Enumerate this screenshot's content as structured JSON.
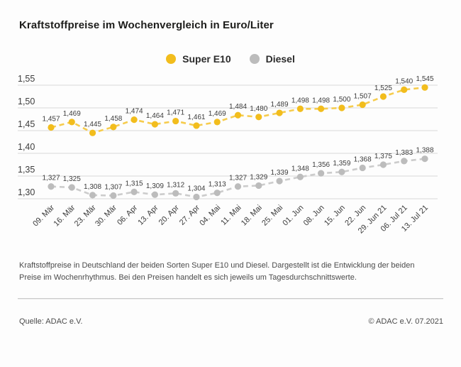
{
  "title": "Kraftstoffpreise im Wochenvergleich in Euro/Liter",
  "legend": {
    "items": [
      {
        "label": "Super E10",
        "color": "#f2bd1d"
      },
      {
        "label": "Diesel",
        "color": "#bcbcbc"
      }
    ]
  },
  "description": "Kraftstoffpreise in Deutschland der beiden Sorten Super E10 und Diesel. Dargestellt ist die Entwicklung der beiden Preise im Wochenrhythmus. Bei den Preisen handelt es sich jeweils um Tagesdurchschnittswerte.",
  "source": "Quelle: ADAC e.V.",
  "copyright": "© ADAC e.V. 07.2021",
  "colors": {
    "grid": "#d9d9d9",
    "axis_text": "#3c3c3c",
    "value_label_text": "#3c3c3c"
  },
  "chart_data": {
    "type": "line",
    "title": "Kraftstoffpreise im Wochenvergleich in Euro/Liter",
    "xlabel": "",
    "ylabel": "Euro/Liter",
    "ylim": [
      1.3,
      1.55
    ],
    "y_ticks": [
      1.55,
      1.5,
      1.45,
      1.4,
      1.35,
      1.3
    ],
    "grid": true,
    "legend_position": "top",
    "decimal_separator": ",",
    "value_labels": true,
    "categories": [
      "09. Mär",
      "16. Mär",
      "23. Mär",
      "30. Mär",
      "06. Apr",
      "13. Apr",
      "20. Apr",
      "27. Apr",
      "04. Mai",
      "11. Mai",
      "18. Mai",
      "25. Mai",
      "01. Jun",
      "08. Jun",
      "15. Jun",
      "22. Jun",
      "29. Jun 21",
      "06. Jul 21",
      "13. Jul 21"
    ],
    "series": [
      {
        "name": "Super E10",
        "marker_color": "#f2bd1d",
        "line_color": "#f6cc4d",
        "values": [
          1.457,
          1.469,
          1.445,
          1.458,
          1.474,
          1.464,
          1.471,
          1.461,
          1.469,
          1.484,
          1.48,
          1.489,
          1.498,
          1.498,
          1.5,
          1.507,
          1.525,
          1.54,
          1.545
        ]
      },
      {
        "name": "Diesel",
        "marker_color": "#bcbcbc",
        "line_color": "#cccccc",
        "values": [
          1.327,
          1.325,
          1.308,
          1.307,
          1.315,
          1.309,
          1.312,
          1.304,
          1.313,
          1.327,
          1.329,
          1.339,
          1.348,
          1.356,
          1.359,
          1.368,
          1.375,
          1.383,
          1.388
        ]
      }
    ]
  }
}
